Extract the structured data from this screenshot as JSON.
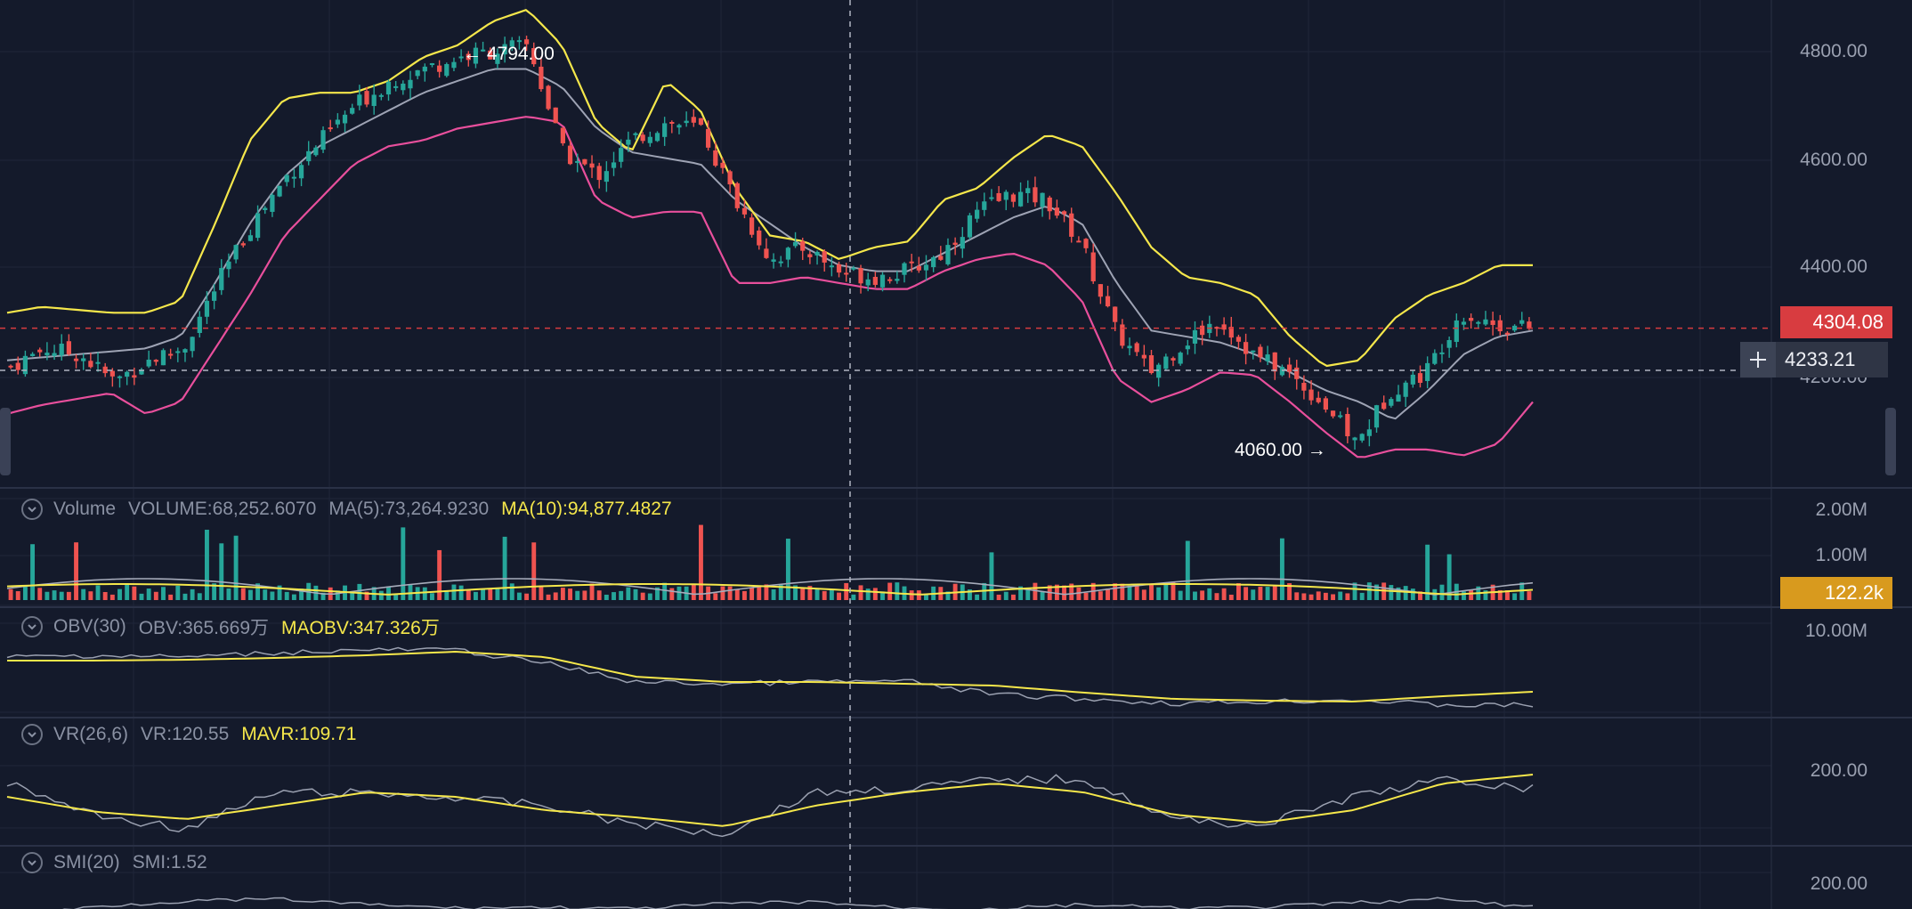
{
  "main": {
    "y_ticks": [
      "4800.00",
      "4600.00",
      "4400.00",
      "4200.00"
    ],
    "last_price": "4304.08",
    "crosshair_price": "4233.21",
    "high_label": "4794.00",
    "low_label": "4060.00",
    "colors": {
      "up": "#26a69a",
      "down": "#ef5350",
      "upper_band": "#f5e74b",
      "lower_band": "#e84f9c",
      "middle_band": "#9ea3b4"
    }
  },
  "volume": {
    "name": "Volume",
    "value": "VOLUME:68,252.6070",
    "ma5": "MA(5):73,264.9230",
    "ma10": "MA(10):94,877.4827",
    "y_ticks": [
      "2.00M",
      "1.00M"
    ],
    "last_value": "122.2k"
  },
  "obv": {
    "name": "OBV(30)",
    "value": "OBV:365.669万",
    "ma": "MAOBV:347.326万",
    "y_ticks": [
      "10.00M"
    ]
  },
  "vr": {
    "name": "VR(26,6)",
    "value": "VR:120.55",
    "ma": "MAVR:109.71",
    "y_ticks": [
      "200.00"
    ]
  },
  "smi": {
    "name": "SMI(20)",
    "value": "SMI:1.52",
    "y_ticks": [
      "200.00"
    ]
  },
  "chart_data": {
    "type": "candlestick",
    "y_range": [
      4040,
      4850
    ],
    "bollinger_upper": [
      4330,
      4340,
      4335,
      4330,
      4330,
      4350,
      4480,
      4620,
      4690,
      4700,
      4700,
      4720,
      4760,
      4780,
      4820,
      4840,
      4780,
      4650,
      4600,
      4720,
      4670,
      4540,
      4460,
      4450,
      4420,
      4440,
      4450,
      4520,
      4540,
      4590,
      4630,
      4610,
      4530,
      4440,
      4390,
      4380,
      4360,
      4290,
      4240,
      4250,
      4320,
      4360,
      4380,
      4410,
      4410
    ],
    "bollinger_middle": [
      4250,
      4255,
      4260,
      4265,
      4270,
      4290,
      4380,
      4480,
      4560,
      4610,
      4640,
      4670,
      4700,
      4720,
      4740,
      4740,
      4710,
      4640,
      4600,
      4590,
      4580,
      4520,
      4480,
      4440,
      4410,
      4400,
      4400,
      4430,
      4460,
      4490,
      4510,
      4480,
      4380,
      4300,
      4290,
      4280,
      4260,
      4230,
      4200,
      4180,
      4150,
      4200,
      4260,
      4290,
      4300
    ],
    "bollinger_lower": [
      4160,
      4175,
      4185,
      4195,
      4160,
      4180,
      4270,
      4360,
      4460,
      4520,
      4580,
      4610,
      4620,
      4640,
      4650,
      4660,
      4650,
      4520,
      4490,
      4500,
      4500,
      4380,
      4380,
      4390,
      4380,
      4370,
      4370,
      4400,
      4420,
      4430,
      4410,
      4350,
      4220,
      4180,
      4200,
      4230,
      4225,
      4180,
      4130,
      4085,
      4100,
      4100,
      4090,
      4110,
      4180
    ],
    "close": [
      4240,
      4270,
      4260,
      4215,
      4250,
      4270,
      4380,
      4480,
      4560,
      4620,
      4680,
      4720,
      4740,
      4760,
      4770,
      4780,
      4600,
      4560,
      4620,
      4650,
      4640,
      4520,
      4420,
      4440,
      4400,
      4390,
      4400,
      4430,
      4500,
      4530,
      4520,
      4450,
      4300,
      4230,
      4280,
      4320,
      4260,
      4230,
      4180,
      4110,
      4200,
      4230,
      4330,
      4310,
      4304
    ]
  }
}
